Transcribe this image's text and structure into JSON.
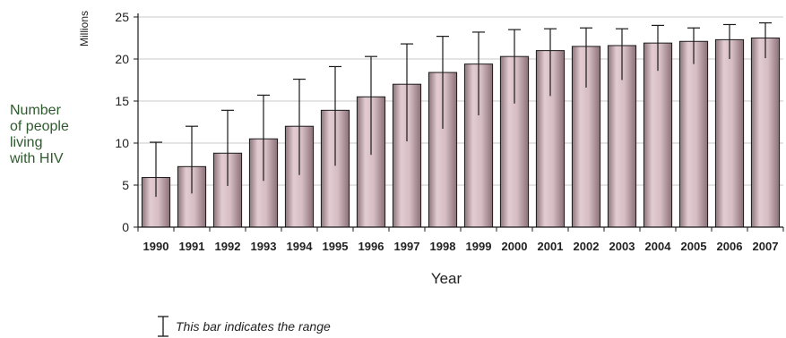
{
  "chart_data": {
    "type": "bar",
    "ylabel_lines": [
      "Number",
      "of people",
      "living",
      "with HIV"
    ],
    "unit_label": "Millions",
    "xlabel": "Year",
    "categories": [
      "1990",
      "1991",
      "1992",
      "1993",
      "1994",
      "1995",
      "1996",
      "1997",
      "1998",
      "1999",
      "2000",
      "2001",
      "2002",
      "2003",
      "2004",
      "2005",
      "2006",
      "2007"
    ],
    "values": [
      5.9,
      7.2,
      8.8,
      10.5,
      12.0,
      13.9,
      15.5,
      17.0,
      18.4,
      19.4,
      20.3,
      21.0,
      21.5,
      21.6,
      21.9,
      22.1,
      22.3,
      22.5
    ],
    "range_low": [
      3.6,
      4.0,
      4.9,
      5.5,
      6.2,
      7.3,
      8.6,
      10.2,
      11.7,
      13.3,
      14.7,
      15.6,
      16.6,
      17.5,
      18.6,
      19.4,
      20.0,
      20.1
    ],
    "range_high": [
      10.1,
      12.0,
      13.9,
      15.7,
      17.6,
      19.1,
      20.3,
      21.8,
      22.7,
      23.2,
      23.5,
      23.6,
      23.7,
      23.6,
      24.0,
      23.7,
      24.1,
      24.3
    ],
    "ylim": [
      0,
      25
    ],
    "yticks": [
      0,
      5,
      10,
      15,
      20,
      25
    ],
    "legend_text": "This bar indicates the range",
    "legend_position": "bottom-left",
    "grid": true,
    "colors": {
      "bar_fill": "#c9b0b7",
      "bar_stroke": "#1a1a1a",
      "grid": "#c8c8c8",
      "axis_label": "#2f5a2f"
    }
  }
}
